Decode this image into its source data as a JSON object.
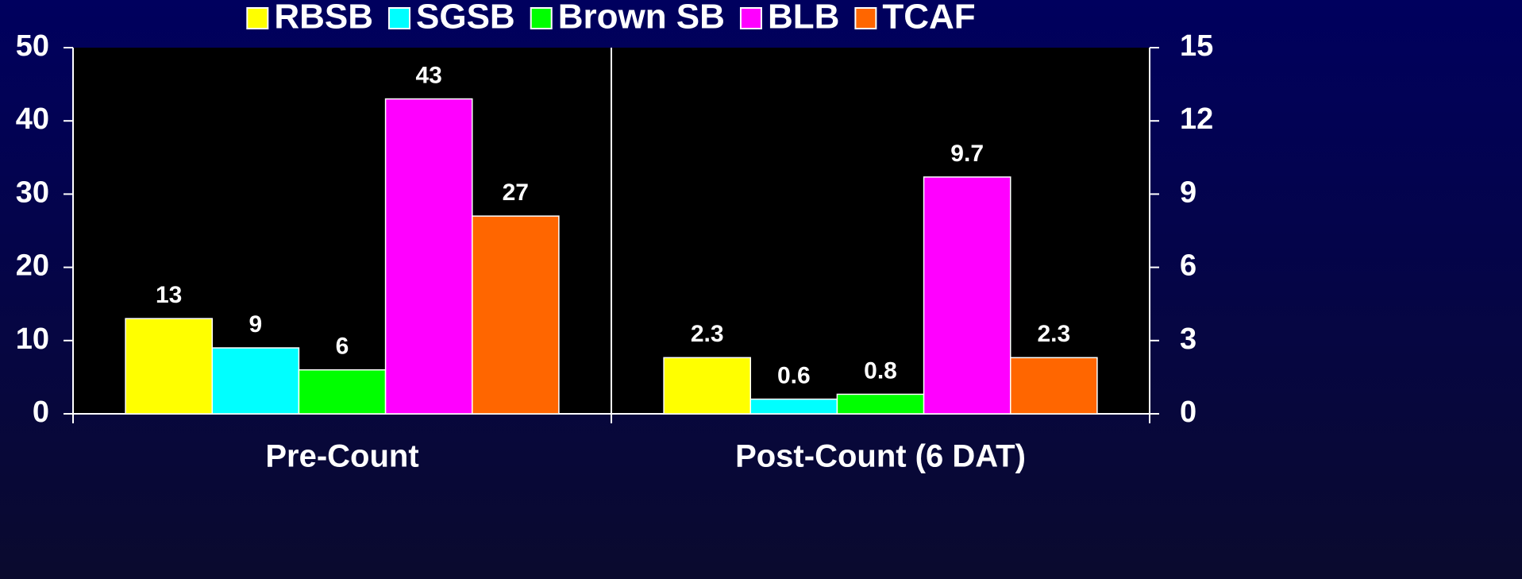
{
  "chart_data": {
    "type": "bar",
    "categories": [
      "Pre-Count",
      "Post-Count (6 DAT)"
    ],
    "category_axes": [
      "y",
      "y2"
    ],
    "series": [
      {
        "name": "RBSB",
        "color": "#ffff00",
        "values": [
          13,
          2.3
        ]
      },
      {
        "name": "SGSB",
        "color": "#00ffff",
        "values": [
          9,
          0.6
        ]
      },
      {
        "name": "Brown SB",
        "color": "#00ff00",
        "values": [
          6,
          0.8
        ]
      },
      {
        "name": "BLB",
        "color": "#ff00ff",
        "values": [
          43,
          9.7
        ]
      },
      {
        "name": "TCAF",
        "color": "#ff6600",
        "values": [
          27,
          2.3
        ]
      }
    ],
    "ylim": [
      0,
      50
    ],
    "yticks": [
      0,
      10,
      20,
      30,
      40,
      50
    ],
    "y2lim": [
      0,
      15
    ],
    "y2ticks": [
      0,
      3,
      6,
      9,
      12,
      15
    ],
    "legend": "top"
  }
}
